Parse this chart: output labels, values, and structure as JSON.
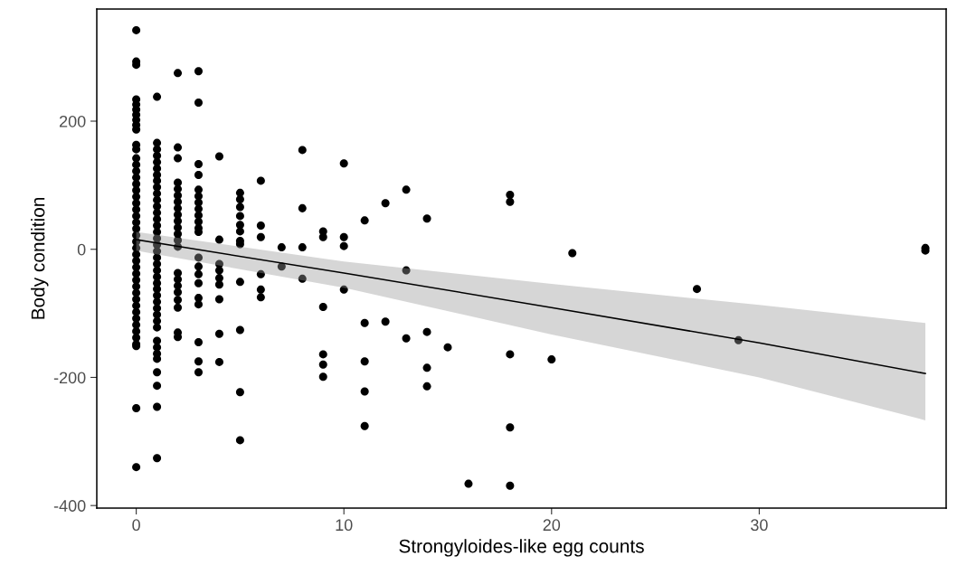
{
  "chart_data": {
    "type": "scatter",
    "xlabel": "Strongyloides-like egg counts",
    "ylabel": "Body condition",
    "xlim": [
      -1.9,
      39
    ],
    "ylim": [
      -404,
      375
    ],
    "xticks": [
      0,
      10,
      20,
      30
    ],
    "yticks": [
      -400,
      -200,
      0,
      200
    ],
    "grid": false,
    "marker": "circle",
    "series": [
      {
        "color": "#000000",
        "x": [
          0,
          0,
          0,
          0,
          0,
          0,
          0,
          0,
          0,
          0,
          0,
          0,
          0,
          0,
          0,
          0,
          0,
          0,
          0,
          0,
          0,
          0,
          0,
          0,
          0,
          0,
          0,
          0,
          0,
          0,
          0,
          0,
          0,
          0,
          0,
          0,
          0,
          0,
          0,
          0,
          0,
          0,
          0,
          0,
          0,
          1,
          1,
          1,
          1,
          1,
          1,
          1,
          1,
          1,
          1,
          1,
          1,
          1,
          1,
          1,
          1,
          1,
          1,
          1,
          1,
          1,
          1,
          1,
          1,
          1,
          1,
          1,
          1,
          1,
          1,
          1,
          1,
          1,
          1,
          1,
          1,
          1,
          1,
          1,
          2,
          2,
          2,
          2,
          2,
          2,
          2,
          2,
          2,
          2,
          2,
          2,
          2,
          2,
          2,
          2,
          2,
          2,
          2,
          2,
          2,
          2,
          3,
          3,
          3,
          3,
          3,
          3,
          3,
          3,
          3,
          3,
          3,
          3,
          3,
          3,
          3,
          3,
          3,
          3,
          3,
          3,
          3,
          4,
          4,
          4,
          4,
          4,
          4,
          4,
          4,
          4,
          5,
          5,
          5,
          5,
          5,
          5,
          5,
          5,
          5,
          5,
          5,
          5,
          6,
          6,
          6,
          6,
          6,
          6,
          7,
          7,
          8,
          8,
          8,
          8,
          9,
          9,
          9,
          9,
          9,
          9,
          10,
          10,
          10,
          10,
          11,
          11,
          11,
          11,
          11,
          12,
          12,
          13,
          13,
          13,
          14,
          14,
          14,
          14,
          15,
          16,
          18,
          18,
          18,
          18,
          18,
          20,
          21,
          27,
          29,
          38,
          38
        ],
        "values": [
          342,
          293,
          288,
          234,
          226,
          218,
          210,
          202,
          194,
          187,
          163,
          156,
          142,
          132,
          122,
          112,
          102,
          92,
          82,
          72,
          62,
          52,
          42,
          32,
          22,
          12,
          2,
          -8,
          -18,
          -28,
          -38,
          -48,
          -58,
          -68,
          -78,
          -88,
          -98,
          -108,
          -118,
          -128,
          -138,
          -148,
          -151,
          -248,
          -340,
          238,
          166,
          156,
          146,
          136,
          126,
          116,
          107,
          97,
          87,
          77,
          67,
          57,
          47,
          37,
          27,
          17,
          7,
          -3,
          -13,
          -23,
          -33,
          -43,
          -53,
          -62,
          -72,
          -82,
          -92,
          -102,
          -112,
          -122,
          -143,
          -153,
          -163,
          -171,
          -192,
          -213,
          -246,
          -326,
          275,
          159,
          142,
          104,
          94,
          84,
          74,
          64,
          54,
          44,
          34,
          24,
          14,
          4,
          -37,
          -47,
          -57,
          -67,
          -79,
          -91,
          -130,
          -137,
          278,
          229,
          133,
          116,
          93,
          83,
          73,
          63,
          53,
          43,
          33,
          27,
          -13,
          -27,
          -39,
          -53,
          -76,
          -86,
          -145,
          -175,
          -192,
          145,
          15,
          -23,
          -33,
          -45,
          -55,
          -78,
          -132,
          -176,
          88,
          78,
          66,
          52,
          38,
          28,
          13,
          8,
          -51,
          -126,
          -223,
          -298,
          107,
          37,
          19,
          -39,
          -63,
          -75,
          3,
          -27,
          155,
          64,
          3,
          -46,
          28,
          19,
          -90,
          -164,
          -180,
          -199,
          134,
          19,
          5,
          -63,
          45,
          -115,
          -175,
          -222,
          -276,
          72,
          -113,
          93,
          -33,
          -139,
          48,
          -129,
          -185,
          -214,
          -153,
          -366,
          85,
          74,
          -164,
          -278,
          -369,
          -172,
          -6,
          -62,
          -142,
          2,
          -2
        ]
      },
      {
        "type": "line",
        "color": "#000000",
        "x": [
          0,
          10,
          20,
          30,
          38
        ],
        "values": [
          15,
          -37,
          -91,
          -146,
          -194
        ],
        "lower": [
          -2,
          -60,
          -133,
          -200,
          -267
        ],
        "upper": [
          27,
          -19,
          -54,
          -87,
          -115
        ],
        "marker": "none",
        "line_style": "solid"
      }
    ]
  }
}
